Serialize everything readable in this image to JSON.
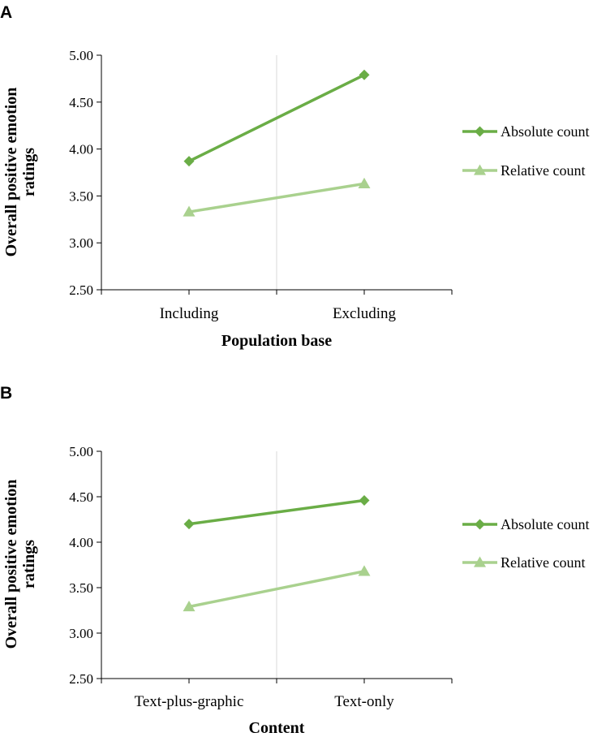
{
  "colors": {
    "absolute": "#6aad46",
    "relative": "#a9d18e",
    "axis": "#000000",
    "grid": "#d9d9d9"
  },
  "chart_data": [
    {
      "panel": "A",
      "type": "line",
      "categories": [
        "Including",
        "Excluding"
      ],
      "xlabel": "Population base",
      "ylabel_lines": [
        "Overall positive emotion",
        "ratings"
      ],
      "ylim": [
        2.5,
        5.0
      ],
      "yticks": [
        "2.50",
        "3.00",
        "3.50",
        "4.00",
        "4.50",
        "5.00"
      ],
      "legend_position": "right",
      "series": [
        {
          "name": "Absolute count",
          "marker": "diamond",
          "values": [
            3.87,
            4.79
          ]
        },
        {
          "name": "Relative count",
          "marker": "triangle",
          "values": [
            3.33,
            3.63
          ]
        }
      ]
    },
    {
      "panel": "B",
      "type": "line",
      "categories": [
        "Text-plus-graphic",
        "Text-only"
      ],
      "xlabel": "Content",
      "ylabel_lines": [
        "Overall positive emotion",
        "ratings"
      ],
      "ylim": [
        2.5,
        5.0
      ],
      "yticks": [
        "2.50",
        "3.00",
        "3.50",
        "4.00",
        "4.50",
        "5.00"
      ],
      "legend_position": "right",
      "series": [
        {
          "name": "Absolute count",
          "marker": "diamond",
          "values": [
            4.2,
            4.46
          ]
        },
        {
          "name": "Relative count",
          "marker": "triangle",
          "values": [
            3.29,
            3.68
          ]
        }
      ]
    }
  ]
}
